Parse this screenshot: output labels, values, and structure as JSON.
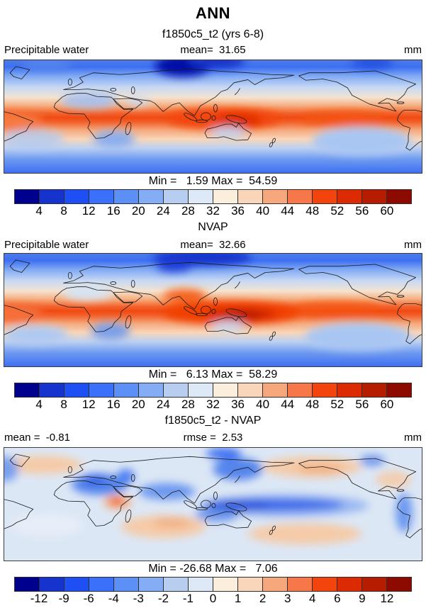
{
  "page": {
    "title": "ANN",
    "subtitle": "f1850c5_t2 (yrs 6-8)"
  },
  "panels": [
    {
      "field": "Precipitable water",
      "mean_label": "mean=  31.65",
      "units": "mm",
      "minmax_label": "Min =   1.59 Max =  54.59"
    },
    {
      "title": "NVAP",
      "field": "Precipitable water",
      "mean_label": "mean=  32.66",
      "units": "mm",
      "minmax_label": "Min =   6.13 Max =  58.29"
    },
    {
      "title": "f1850c5_t2 - NVAP",
      "mean_label": "mean =  -0.81",
      "rmse_label": "rmse =  2.53",
      "units": "mm",
      "minmax_label": "Min = -26.68 Max =   7.06"
    }
  ],
  "colorbars": {
    "abs": {
      "ticks": [
        "4",
        "8",
        "12",
        "16",
        "20",
        "24",
        "28",
        "32",
        "36",
        "40",
        "44",
        "48",
        "52",
        "56",
        "60"
      ],
      "palette": [
        "#00008F",
        "#1633CE",
        "#1E4FF5",
        "#3A70FA",
        "#5C90F7",
        "#85ADF5",
        "#B7CEF0",
        "#DEE9F8",
        "#FBEEDC",
        "#F9D6B9",
        "#F6A87C",
        "#F6784A",
        "#F4440D",
        "#DC2A02",
        "#B51C00",
        "#8C0A00"
      ]
    },
    "diff": {
      "ticks": [
        "-12",
        "-9",
        "-6",
        "-4",
        "-3",
        "-2",
        "-1",
        "0",
        "1",
        "2",
        "3",
        "4",
        "6",
        "9",
        "12"
      ],
      "palette": [
        "#00008F",
        "#1633CE",
        "#1E4FF5",
        "#3A70FA",
        "#5C90F7",
        "#85ADF5",
        "#B7CEF0",
        "#DEE9F8",
        "#FBEEDC",
        "#F9D6B9",
        "#F6A87C",
        "#F6784A",
        "#F4440D",
        "#DC2A02",
        "#B51C00",
        "#8C0A00"
      ]
    }
  },
  "chart_data": [
    {
      "type": "heatmap",
      "panel": "top",
      "title": "f1850c5_t2 (yrs 6-8)",
      "variable": "Precipitable water",
      "units": "mm",
      "stats": {
        "mean": 31.65,
        "min": 1.59,
        "max": 54.59
      },
      "colorbar_levels": [
        4,
        8,
        12,
        16,
        20,
        24,
        28,
        32,
        36,
        40,
        44,
        48,
        52,
        56,
        60
      ],
      "colorbar_colors": [
        "#00008F",
        "#1633CE",
        "#1E4FF5",
        "#3A70FA",
        "#5C90F7",
        "#85ADF5",
        "#B7CEF0",
        "#DEE9F8",
        "#FBEEDC",
        "#F9D6B9",
        "#F6A87C",
        "#F6784A",
        "#F4440D",
        "#DC2A02",
        "#B51C00",
        "#8C0A00"
      ],
      "pattern_summary": "Global lat-lon contour map (lon -60E to 300E). Deep orange-red band (40-55 mm) along the tropics with maximum over the Indo-Pacific warm pool; dark navy minimum over the Tibetan Plateau; blues (<16 mm) at high latitudes; pale blue over the Sahara and subtropical east-ocean basins."
    },
    {
      "type": "heatmap",
      "panel": "middle",
      "title": "NVAP",
      "variable": "Precipitable water",
      "units": "mm",
      "stats": {
        "mean": 32.66,
        "min": 6.13,
        "max": 58.29
      },
      "colorbar_levels": [
        4,
        8,
        12,
        16,
        20,
        24,
        28,
        32,
        36,
        40,
        44,
        48,
        52,
        56,
        60
      ],
      "colorbar_colors": [
        "#00008F",
        "#1633CE",
        "#1E4FF5",
        "#3A70FA",
        "#5C90F7",
        "#85ADF5",
        "#B7CEF0",
        "#DEE9F8",
        "#FBEEDC",
        "#F9D6B9",
        "#F6A87C",
        "#F6784A",
        "#F4440D",
        "#DC2A02",
        "#B51C00",
        "#8C0A00"
      ],
      "pattern_summary": "Observed NVAP climatology: same tropical maximum structure but with darker red core (>52 mm) over Indonesia / western Pacific warm pool, smoother gradients, blue high latitudes."
    },
    {
      "type": "heatmap",
      "panel": "bottom",
      "title": "f1850c5_t2 - NVAP",
      "variable": "Precipitable water difference",
      "units": "mm",
      "stats": {
        "mean": -0.81,
        "rmse": 2.53,
        "min": -26.68,
        "max": 7.06
      },
      "colorbar_levels": [
        -12,
        -9,
        -6,
        -4,
        -3,
        -2,
        -1,
        0,
        1,
        2,
        3,
        4,
        6,
        9,
        12
      ],
      "colorbar_colors": [
        "#00008F",
        "#1633CE",
        "#1E4FF5",
        "#3A70FA",
        "#5C90F7",
        "#85ADF5",
        "#B7CEF0",
        "#DEE9F8",
        "#FBEEDC",
        "#F9D6B9",
        "#F6A87C",
        "#F6784A",
        "#F4440D",
        "#DC2A02",
        "#B51C00",
        "#8C0A00"
      ],
      "pattern_summary": "Difference map: strong dry bias (blue, -6 to -12 mm) along the equatorial Pacific and over North/Central Africa, Arabian Sea and NW Pacific; moist bias (orange) over central Africa; pale peach (+1 to +3 mm) over subtropical N/S Pacific, S Indian Ocean and N Atlantic."
    }
  ]
}
